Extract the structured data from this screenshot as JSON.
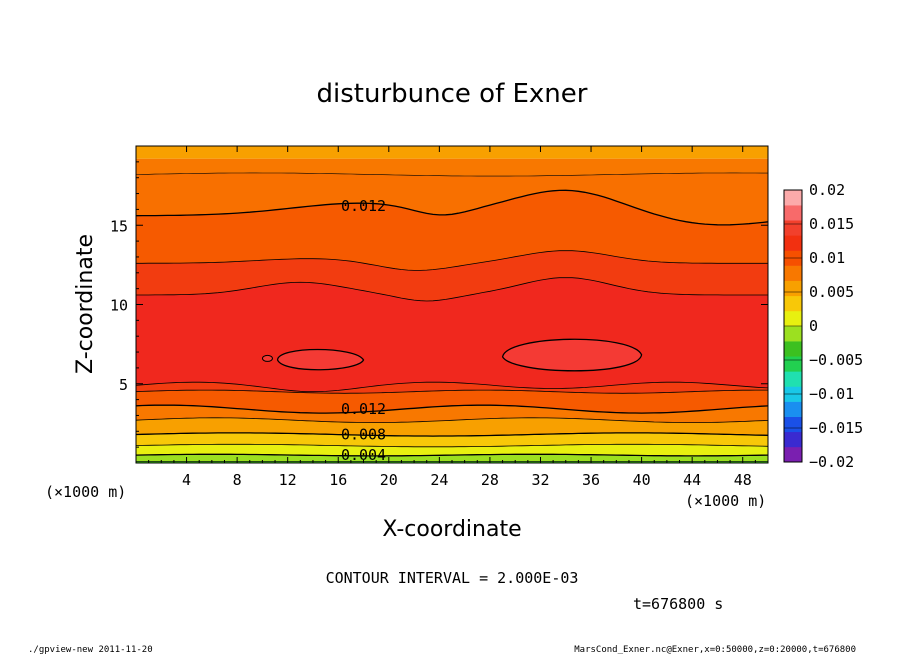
{
  "chart_data": {
    "type": "contour",
    "title": "disturbunce of Exner",
    "xlabel": "X-coordinate",
    "ylabel": "Z-coordinate",
    "x_unit": "(×1000 m)",
    "y_unit": "(×1000 m)",
    "xlim": [
      0,
      50
    ],
    "ylim": [
      0,
      20
    ],
    "x_ticks": [
      4,
      8,
      12,
      16,
      20,
      24,
      28,
      32,
      36,
      40,
      44,
      48
    ],
    "y_ticks": [
      5,
      10,
      15
    ],
    "colorbar": {
      "ticks": [
        "0.02",
        "0.015",
        "0.01",
        "0.005",
        "0",
        "−0.005",
        "−0.01",
        "−0.015",
        "−0.02"
      ],
      "range": [
        -0.02,
        0.02
      ],
      "colors": [
        "#7a1fb0",
        "#3a2ad0",
        "#1a50e8",
        "#1a8ff0",
        "#19c8e8",
        "#20e0b0",
        "#22d050",
        "#3cc020",
        "#9ce020",
        "#e8f010",
        "#f8c808",
        "#f8a000",
        "#f87800",
        "#f65000",
        "#f23010",
        "#f2402c",
        "#f86a6a",
        "#fcaaaa"
      ]
    },
    "contour_labels": [
      {
        "value": "0.012",
        "x": 18,
        "z": 16.2
      },
      {
        "value": "0.012",
        "x": 18,
        "z": 3.4
      },
      {
        "value": "0.008",
        "x": 18,
        "z": 1.8
      },
      {
        "value": "0.004",
        "x": 18,
        "z": 0.5
      }
    ],
    "max_regions": [
      {
        "x_range": [
          11.2,
          18
        ],
        "z_center": 6.5
      },
      {
        "x_range": [
          29,
          40
        ],
        "z_center": 6.7
      }
    ],
    "annotations": {
      "contour_interval": "CONTOUR INTERVAL = 2.000E-03",
      "time": "t=676800 s",
      "footer_left": "./gpview-new   2011-11-20",
      "footer_right": "MarsCond_Exner.nc@Exner,x=0:50000,z=0:20000,t=676800"
    }
  }
}
